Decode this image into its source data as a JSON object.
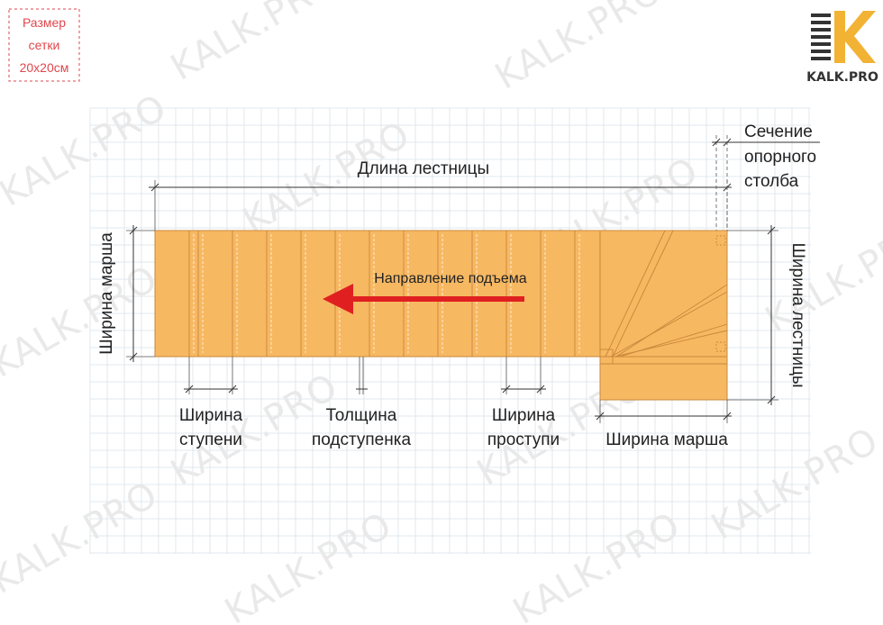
{
  "grid_note": {
    "lines": [
      "Размер",
      "сетки",
      "20х20см"
    ],
    "color": "#e0474c"
  },
  "logo": {
    "text": "KALK.PRO",
    "accent_color": "#f2b234",
    "dark_color": "#333333"
  },
  "watermark_text": "KALK.PRO",
  "labels": {
    "stair_length": "Длина лестницы",
    "post_section": [
      "Сечение",
      "опорного",
      "столба"
    ],
    "flight_width_left": "Ширина марша",
    "stair_width_right": "Ширина лестницы",
    "rise_direction": "Направление подъема",
    "tread_width": [
      "Ширина",
      "ступени"
    ],
    "riser_thickness": [
      "Толщина",
      "подступенка"
    ],
    "going_width": [
      "Ширина",
      "проступи"
    ],
    "flight_width_bottom": "Ширина марша"
  },
  "colors": {
    "tread_fill": "#f7b862",
    "tread_edge": "#c8873a",
    "arrow": "#e02020",
    "grid": "#d9e2ea"
  }
}
